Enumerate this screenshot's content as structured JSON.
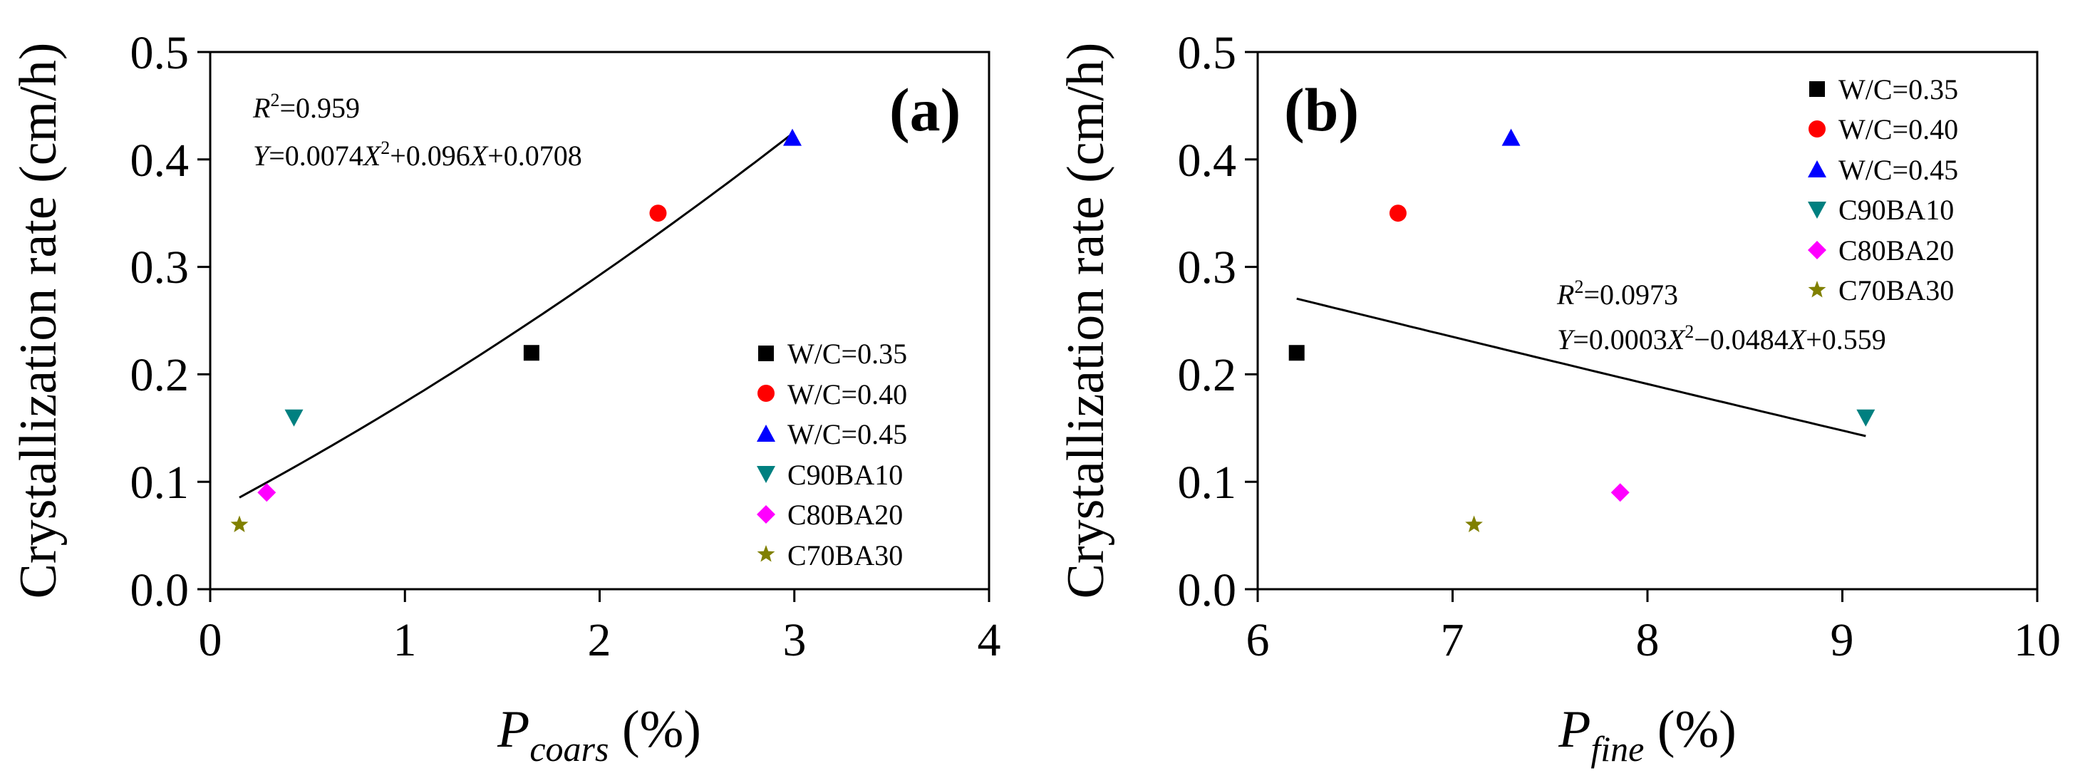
{
  "chart_data": [
    {
      "type": "scatter",
      "panel_label": "(a)",
      "ylabel": "Crystallization rate (cm/h)",
      "xlabel": {
        "main": "P",
        "sub": "coars",
        "unit": " (%)"
      },
      "xlim": [
        0,
        4
      ],
      "ylim": [
        0.0,
        0.5
      ],
      "xticks": [
        "0",
        "1",
        "2",
        "3",
        "4"
      ],
      "yticks": [
        "0.0",
        "0.1",
        "0.2",
        "0.3",
        "0.4",
        "0.5"
      ],
      "legend_position": "bottom-right",
      "series": [
        {
          "name": "W/C=0.35",
          "marker": "square",
          "color": "#000000",
          "x": [
            1.65
          ],
          "y": [
            0.22
          ]
        },
        {
          "name": "W/C=0.40",
          "marker": "circle",
          "color": "#ff0000",
          "x": [
            2.3
          ],
          "y": [
            0.35
          ]
        },
        {
          "name": "W/C=0.45",
          "marker": "triangle-up",
          "color": "#0000ff",
          "x": [
            2.99
          ],
          "y": [
            0.42
          ]
        },
        {
          "name": "C90BA10",
          "marker": "triangle-down",
          "color": "#008080",
          "x": [
            0.43
          ],
          "y": [
            0.16
          ]
        },
        {
          "name": "C80BA20",
          "marker": "diamond",
          "color": "#ff00ff",
          "x": [
            0.29
          ],
          "y": [
            0.09
          ]
        },
        {
          "name": "C70BA30",
          "marker": "star",
          "color": "#808000",
          "x": [
            0.15
          ],
          "y": [
            0.06
          ]
        }
      ],
      "fit": {
        "a": 0.0074,
        "b": 0.096,
        "c": 0.0708,
        "x_range": [
          0.15,
          2.99
        ],
        "r2_label": "R",
        "r2_sup": "2",
        "r2_value": "=0.959",
        "eq_y": "Y",
        "eq_p1": "=0.0074",
        "eq_x1": "X",
        "eq_sup": "2",
        "eq_p2": "+0.096",
        "eq_x2": "X",
        "eq_p3": "+0.0708"
      }
    },
    {
      "type": "scatter",
      "panel_label": "(b)",
      "ylabel": "Crystallization rate (cm/h)",
      "xlabel": {
        "main": "P",
        "sub": "fine",
        "unit": " (%)"
      },
      "xlim": [
        6,
        10
      ],
      "ylim": [
        0.0,
        0.5
      ],
      "xticks": [
        "6",
        "7",
        "8",
        "9",
        "10"
      ],
      "yticks": [
        "0.0",
        "0.1",
        "0.2",
        "0.3",
        "0.4",
        "0.5"
      ],
      "legend_position": "top-right",
      "series": [
        {
          "name": "W/C=0.35",
          "marker": "square",
          "color": "#000000",
          "x": [
            6.2
          ],
          "y": [
            0.22
          ]
        },
        {
          "name": "W/C=0.40",
          "marker": "circle",
          "color": "#ff0000",
          "x": [
            6.72
          ],
          "y": [
            0.35
          ]
        },
        {
          "name": "W/C=0.45",
          "marker": "triangle-up",
          "color": "#0000ff",
          "x": [
            7.3
          ],
          "y": [
            0.42
          ]
        },
        {
          "name": "C90BA10",
          "marker": "triangle-down",
          "color": "#008080",
          "x": [
            9.12
          ],
          "y": [
            0.16
          ]
        },
        {
          "name": "C80BA20",
          "marker": "diamond",
          "color": "#ff00ff",
          "x": [
            7.86
          ],
          "y": [
            0.09
          ]
        },
        {
          "name": "C70BA30",
          "marker": "star",
          "color": "#808000",
          "x": [
            7.11
          ],
          "y": [
            0.06
          ]
        }
      ],
      "fit": {
        "a": 0.0003,
        "b": -0.0484,
        "c": 0.559,
        "x_range": [
          6.2,
          9.12
        ],
        "r2_label": "R",
        "r2_sup": "2",
        "r2_value": "=0.0973",
        "eq_y": "Y",
        "eq_p1": "=0.0003",
        "eq_x1": "X",
        "eq_sup": "2",
        "eq_p2": "−0.0484",
        "eq_x2": "X",
        "eq_p3": "+0.559"
      }
    }
  ]
}
